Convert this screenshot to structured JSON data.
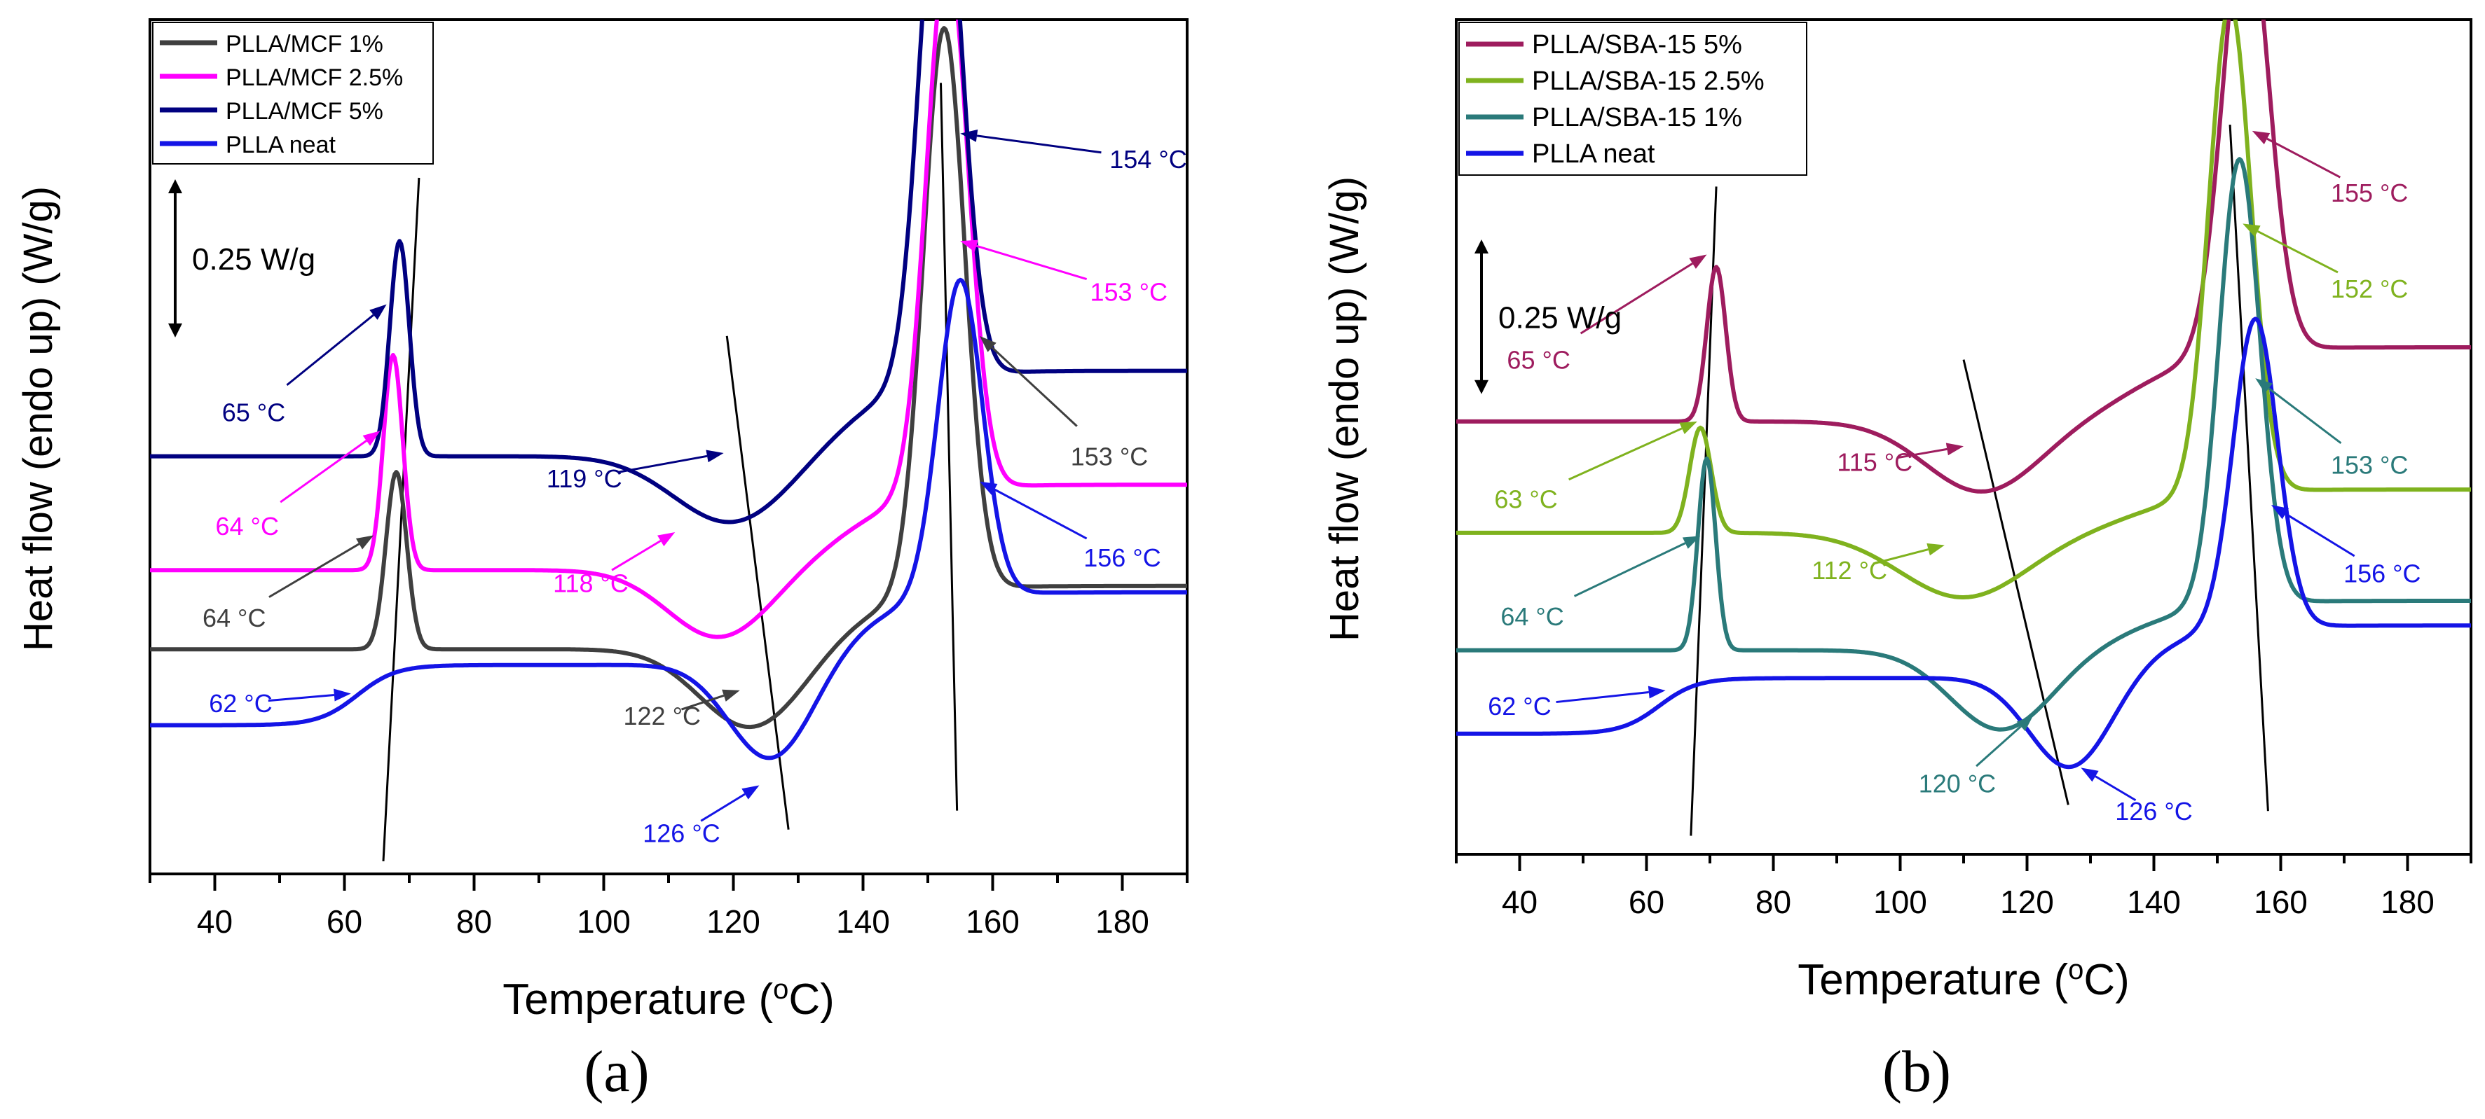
{
  "figure": {
    "panel_a_label": "(a)",
    "panel_b_label": "(b)"
  },
  "chart_data": [
    {
      "panel": "a",
      "type": "line",
      "xlabel": "Temperature (oC)",
      "ylabel": "Heat flow (endo up) (W/g)",
      "xlim": [
        30,
        190
      ],
      "ylim": [
        0,
        1.35
      ],
      "xticks": [
        40,
        60,
        80,
        100,
        120,
        140,
        160,
        180
      ],
      "grid": false,
      "legend_position": "top-left",
      "scale_bar": {
        "label": "0.25 W/g",
        "value": 0.25
      },
      "series": [
        {
          "name": "PLLA/MCF  1%",
          "color": "#3f3f3f",
          "baseline": 0.355,
          "end": 0.455,
          "features": [
            {
              "t": 68,
              "h": 0.28,
              "w": 1.6
            },
            {
              "t": 123,
              "h": -0.13,
              "w": 8
            },
            {
              "t": 152.5,
              "h": 0.89,
              "w": 3.2
            }
          ]
        },
        {
          "name": "PLLA/MCF  2.5%",
          "color": "#ff00ff",
          "baseline": 0.48,
          "end": 0.615,
          "features": [
            {
              "t": 67.5,
              "h": 0.34,
              "w": 1.5
            },
            {
              "t": 118,
              "h": -0.11,
              "w": 8
            },
            {
              "t": 153,
              "h": 0.85,
              "w": 3.2
            }
          ]
        },
        {
          "name": "PLLA/MCF  5%",
          "color": "#000080",
          "baseline": 0.66,
          "end": 0.795,
          "features": [
            {
              "t": 68.5,
              "h": 0.34,
              "w": 1.5
            },
            {
              "t": 120,
              "h": -0.11,
              "w": 9
            },
            {
              "t": 152,
              "h": 0.86,
              "w": 3.2
            }
          ]
        },
        {
          "name": "PLLA neat",
          "color": "#1414e6",
          "baseline": 0.235,
          "end": 0.35,
          "features": [
            {
              "t": 62,
              "step": 0.095,
              "w": 3
            },
            {
              "t": 126,
              "h": -0.16,
              "w": 6.5
            },
            {
              "t": 155,
              "h": 0.5,
              "w": 3.4
            }
          ]
        }
      ],
      "annotations": [
        {
          "text": "65 °C",
          "color": "#000080",
          "x": 46,
          "y": 0.73,
          "tx": 66.5,
          "ty": 0.9
        },
        {
          "text": "64 °C",
          "color": "#ff00ff",
          "x": 45,
          "y": 0.55,
          "tx": 65.5,
          "ty": 0.7
        },
        {
          "text": "64 °C",
          "color": "#3f3f3f",
          "x": 43,
          "y": 0.405,
          "tx": 64.5,
          "ty": 0.535
        },
        {
          "text": "62 °C",
          "color": "#1414e6",
          "x": 44,
          "y": 0.27,
          "tx": 61,
          "ty": 0.285
        },
        {
          "text": "119 °C",
          "color": "#000080",
          "x": 97,
          "y": 0.625,
          "tx": 118.5,
          "ty": 0.665
        },
        {
          "text": "118 °C",
          "color": "#ff00ff",
          "x": 98,
          "y": 0.46,
          "tx": 111,
          "ty": 0.54
        },
        {
          "text": "122 °C",
          "color": "#3f3f3f",
          "x": 109,
          "y": 0.25,
          "tx": 121,
          "ty": 0.29
        },
        {
          "text": "126 °C",
          "color": "#1414e6",
          "x": 112,
          "y": 0.065,
          "tx": 124,
          "ty": 0.14
        },
        {
          "text": "154 °C",
          "color": "#000080",
          "x": 184,
          "y": 1.13,
          "tx": 155,
          "ty": 1.17
        },
        {
          "text": "153 °C",
          "color": "#ff00ff",
          "x": 181,
          "y": 0.92,
          "tx": 155,
          "ty": 1.0
        },
        {
          "text": "153 °C",
          "color": "#3f3f3f",
          "x": 178,
          "y": 0.66,
          "tx": 158,
          "ty": 0.85
        },
        {
          "text": "156 °C",
          "color": "#1414e6",
          "x": 180,
          "y": 0.5,
          "tx": 158,
          "ty": 0.62
        }
      ],
      "guide_lines": [
        {
          "x1": 66,
          "y1": 0.02,
          "x2": 71.5,
          "y2": 1.1
        },
        {
          "x1": 119,
          "y1": 0.85,
          "x2": 128.5,
          "y2": 0.07
        },
        {
          "x1": 152,
          "y1": 1.25,
          "x2": 154.5,
          "y2": 0.1
        }
      ]
    },
    {
      "panel": "b",
      "type": "line",
      "xlabel": "Temperature (oC)",
      "ylabel": "Heat flow (endo up) (W/g)",
      "xlim": [
        30,
        190
      ],
      "ylim": [
        0,
        1.35
      ],
      "xticks": [
        40,
        60,
        80,
        100,
        120,
        140,
        160,
        180
      ],
      "grid": false,
      "legend_position": "top-left",
      "scale_bar": {
        "label": "0.25 W/g",
        "value": 0.25
      },
      "series": [
        {
          "name": "PLLA/SBA-15 5%",
          "color": "#9e1c5e",
          "baseline": 0.7,
          "end": 0.82,
          "features": [
            {
              "t": 71,
              "h": 0.25,
              "w": 1.5
            },
            {
              "t": 113,
              "h": -0.115,
              "w": 9
            },
            {
              "t": 154.5,
              "h": 0.72,
              "w": 3.6
            }
          ]
        },
        {
          "name": "PLLA/SBA-15 2.5%",
          "color": "#7fb21e",
          "baseline": 0.52,
          "end": 0.59,
          "features": [
            {
              "t": 68.5,
              "h": 0.17,
              "w": 1.7
            },
            {
              "t": 110,
              "h": -0.105,
              "w": 10
            },
            {
              "t": 152,
              "h": 0.79,
              "w": 3.3
            }
          ]
        },
        {
          "name": "PLLA/SBA-15 1%",
          "color": "#2a7a7a",
          "baseline": 0.33,
          "end": 0.41,
          "features": [
            {
              "t": 69.5,
              "h": 0.31,
              "w": 1.4
            },
            {
              "t": 116,
              "h": -0.13,
              "w": 8
            },
            {
              "t": 153.5,
              "h": 0.72,
              "w": 3.2
            }
          ]
        },
        {
          "name": "PLLA neat",
          "color": "#1414e6",
          "baseline": 0.195,
          "end": 0.28,
          "features": [
            {
              "t": 62,
              "step": 0.09,
              "w": 3
            },
            {
              "t": 127,
              "h": -0.155,
              "w": 6.5
            },
            {
              "t": 156,
              "h": 0.5,
              "w": 3.5
            }
          ]
        }
      ],
      "annotations": [
        {
          "text": "65 °C",
          "color": "#9e1c5e",
          "x": 43,
          "y": 0.8,
          "tx": 69.5,
          "ty": 0.97
        },
        {
          "text": "63 °C",
          "color": "#7fb21e",
          "x": 41,
          "y": 0.575,
          "tx": 68,
          "ty": 0.7
        },
        {
          "text": "64 °C",
          "color": "#2a7a7a",
          "x": 42,
          "y": 0.385,
          "tx": 68.5,
          "ty": 0.515
        },
        {
          "text": "62 °C",
          "color": "#1414e6",
          "x": 40,
          "y": 0.24,
          "tx": 63,
          "ty": 0.265
        },
        {
          "text": "115 °C",
          "color": "#9e1c5e",
          "x": 96,
          "y": 0.635,
          "tx": 110,
          "ty": 0.66
        },
        {
          "text": "112 °C",
          "color": "#7fb21e",
          "x": 92,
          "y": 0.46,
          "tx": 107,
          "ty": 0.5
        },
        {
          "text": "120 °C",
          "color": "#2a7a7a",
          "x": 109,
          "y": 0.115,
          "tx": 121,
          "ty": 0.225
        },
        {
          "text": "126 °C",
          "color": "#1414e6",
          "x": 140,
          "y": 0.07,
          "tx": 128.5,
          "ty": 0.14
        },
        {
          "text": "155 °C",
          "color": "#9e1c5e",
          "x": 174,
          "y": 1.07,
          "tx": 155.5,
          "ty": 1.17
        },
        {
          "text": "152 °C",
          "color": "#7fb21e",
          "x": 174,
          "y": 0.915,
          "tx": 154,
          "ty": 1.02
        },
        {
          "text": "153 °C",
          "color": "#2a7a7a",
          "x": 174,
          "y": 0.63,
          "tx": 156,
          "ty": 0.77
        },
        {
          "text": "156 °C",
          "color": "#1414e6",
          "x": 176,
          "y": 0.455,
          "tx": 158.5,
          "ty": 0.565
        }
      ],
      "guide_lines": [
        {
          "x1": 67,
          "y1": 0.03,
          "x2": 71,
          "y2": 1.08
        },
        {
          "x1": 110,
          "y1": 0.8,
          "x2": 126.5,
          "y2": 0.08
        },
        {
          "x1": 152,
          "y1": 1.18,
          "x2": 158,
          "y2": 0.07
        }
      ]
    }
  ]
}
